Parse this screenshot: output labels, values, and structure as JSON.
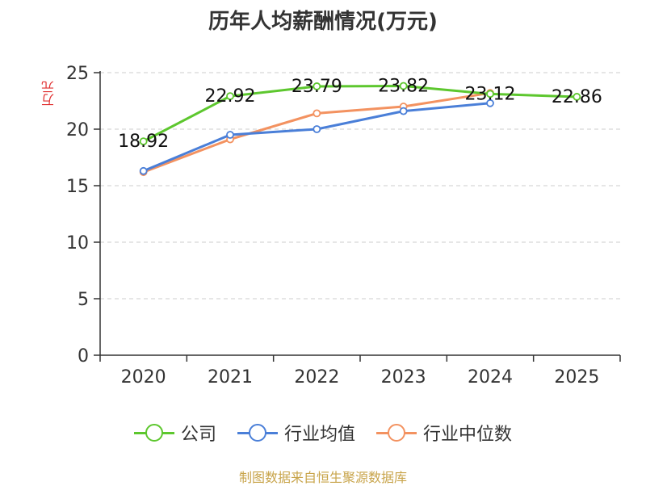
{
  "title": "历年人均薪酬情况(万元)",
  "source": "制图数据来自恒生聚源数据库",
  "chart_data": {
    "type": "line",
    "title": "历年人均薪酬情况(万元)",
    "ylabel": "万元",
    "xlabel": "",
    "categories": [
      "2020",
      "2021",
      "2022",
      "2023",
      "2024",
      "2025"
    ],
    "ylim": [
      0,
      25
    ],
    "yticks": [
      "0",
      "5",
      "10",
      "15",
      "20",
      "25"
    ],
    "grid": true,
    "legend_position": "bottom",
    "series": [
      {
        "name": "公司",
        "color": "#5dc72e",
        "values": [
          18.92,
          22.92,
          23.79,
          23.82,
          23.12,
          22.86
        ],
        "labels": [
          "18.92",
          "22.92",
          "23.79",
          "23.82",
          "23.12",
          "22.86"
        ]
      },
      {
        "name": "行业均值",
        "color": "#4a7fd8",
        "values": [
          16.3,
          19.5,
          20.0,
          21.6,
          22.3,
          null
        ],
        "labels": []
      },
      {
        "name": "行业中位数",
        "color": "#f39260",
        "values": [
          16.2,
          19.1,
          21.4,
          22.0,
          23.2,
          null
        ],
        "labels": []
      }
    ]
  }
}
